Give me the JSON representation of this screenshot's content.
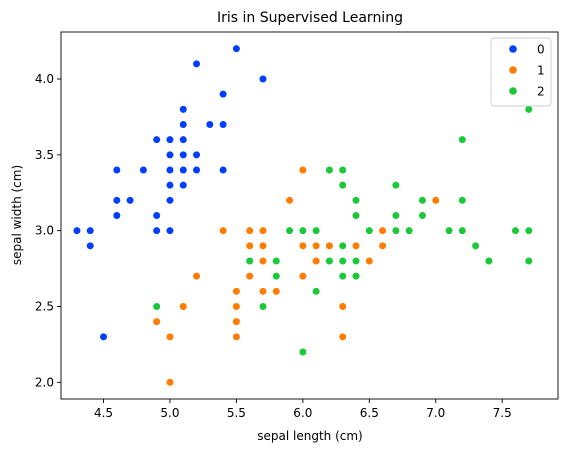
{
  "chart_data": {
    "type": "scatter",
    "title": "Iris in Supervised Learning",
    "xlabel": "sepal length (cm)",
    "ylabel": "sepal width (cm)",
    "xlim": [
      4.18,
      7.92
    ],
    "ylim": [
      1.89,
      4.31
    ],
    "xticks": [
      4.5,
      5.0,
      5.5,
      6.0,
      6.5,
      7.0,
      7.5
    ],
    "xtick_labels": [
      "4.5",
      "5.0",
      "5.5",
      "6.0",
      "6.5",
      "7.0",
      "7.5"
    ],
    "yticks": [
      2.0,
      2.5,
      3.0,
      3.5,
      4.0
    ],
    "ytick_labels": [
      "2.0",
      "2.5",
      "3.0",
      "3.5",
      "4.0"
    ],
    "grid": false,
    "legend_position": "top-right",
    "series": [
      {
        "name": "0",
        "color": "#023eff",
        "points": [
          [
            4.3,
            3.0
          ],
          [
            4.4,
            3.0
          ],
          [
            4.4,
            2.9
          ],
          [
            4.5,
            2.3
          ],
          [
            4.6,
            3.4
          ],
          [
            4.6,
            3.2
          ],
          [
            4.6,
            3.1
          ],
          [
            4.7,
            3.2
          ],
          [
            4.8,
            3.4
          ],
          [
            4.9,
            3.6
          ],
          [
            4.9,
            3.1
          ],
          [
            4.9,
            3.0
          ],
          [
            5.0,
            3.6
          ],
          [
            5.0,
            3.5
          ],
          [
            5.0,
            3.4
          ],
          [
            5.0,
            3.3
          ],
          [
            5.0,
            3.2
          ],
          [
            5.0,
            3.0
          ],
          [
            5.1,
            3.8
          ],
          [
            5.1,
            3.7
          ],
          [
            5.1,
            3.5
          ],
          [
            5.1,
            3.4
          ],
          [
            5.1,
            3.3
          ],
          [
            5.2,
            4.1
          ],
          [
            5.2,
            3.5
          ],
          [
            5.2,
            3.4
          ],
          [
            5.3,
            3.7
          ],
          [
            5.4,
            3.9
          ],
          [
            5.4,
            3.7
          ],
          [
            5.4,
            3.4
          ],
          [
            5.5,
            4.2
          ],
          [
            5.7,
            4.0
          ],
          [
            5.1,
            3.6
          ]
        ]
      },
      {
        "name": "1",
        "color": "#ff7c00",
        "points": [
          [
            4.9,
            2.4
          ],
          [
            5.0,
            2.3
          ],
          [
            5.0,
            2.0
          ],
          [
            5.1,
            2.5
          ],
          [
            5.2,
            2.7
          ],
          [
            5.4,
            3.0
          ],
          [
            5.5,
            2.6
          ],
          [
            5.5,
            2.5
          ],
          [
            5.5,
            2.4
          ],
          [
            5.5,
            2.3
          ],
          [
            5.6,
            3.0
          ],
          [
            5.6,
            2.9
          ],
          [
            5.6,
            2.7
          ],
          [
            5.7,
            3.0
          ],
          [
            5.7,
            2.9
          ],
          [
            5.7,
            2.8
          ],
          [
            5.7,
            2.6
          ],
          [
            5.8,
            2.7
          ],
          [
            5.8,
            2.6
          ],
          [
            5.9,
            3.2
          ],
          [
            6.0,
            3.4
          ],
          [
            6.0,
            2.9
          ],
          [
            6.0,
            2.7
          ],
          [
            6.1,
            3.0
          ],
          [
            6.1,
            2.9
          ],
          [
            6.1,
            2.8
          ],
          [
            6.2,
            2.9
          ],
          [
            6.3,
            3.3
          ],
          [
            6.3,
            2.5
          ],
          [
            6.3,
            2.3
          ],
          [
            6.4,
            2.9
          ],
          [
            6.5,
            2.8
          ],
          [
            6.6,
            3.0
          ],
          [
            6.6,
            2.9
          ],
          [
            6.7,
            3.0
          ],
          [
            6.9,
            3.1
          ],
          [
            7.0,
            3.2
          ]
        ]
      },
      {
        "name": "2",
        "color": "#1ac938",
        "points": [
          [
            4.9,
            2.5
          ],
          [
            5.6,
            2.8
          ],
          [
            5.7,
            2.5
          ],
          [
            5.8,
            2.8
          ],
          [
            5.8,
            2.7
          ],
          [
            5.9,
            3.0
          ],
          [
            6.0,
            3.0
          ],
          [
            6.0,
            2.2
          ],
          [
            6.1,
            3.0
          ],
          [
            6.1,
            2.6
          ],
          [
            6.2,
            3.4
          ],
          [
            6.2,
            2.8
          ],
          [
            6.3,
            3.4
          ],
          [
            6.3,
            3.3
          ],
          [
            6.3,
            2.9
          ],
          [
            6.3,
            2.8
          ],
          [
            6.3,
            2.7
          ],
          [
            6.4,
            3.2
          ],
          [
            6.4,
            3.1
          ],
          [
            6.4,
            2.8
          ],
          [
            6.4,
            2.7
          ],
          [
            6.5,
            3.0
          ],
          [
            6.7,
            3.3
          ],
          [
            6.7,
            3.1
          ],
          [
            6.7,
            3.0
          ],
          [
            6.8,
            3.0
          ],
          [
            6.9,
            3.2
          ],
          [
            6.9,
            3.1
          ],
          [
            7.1,
            3.0
          ],
          [
            7.2,
            3.6
          ],
          [
            7.2,
            3.2
          ],
          [
            7.2,
            3.0
          ],
          [
            7.3,
            2.9
          ],
          [
            7.4,
            2.8
          ],
          [
            7.6,
            3.0
          ],
          [
            7.7,
            3.8
          ],
          [
            7.7,
            3.0
          ],
          [
            7.7,
            2.8
          ]
        ]
      }
    ]
  }
}
